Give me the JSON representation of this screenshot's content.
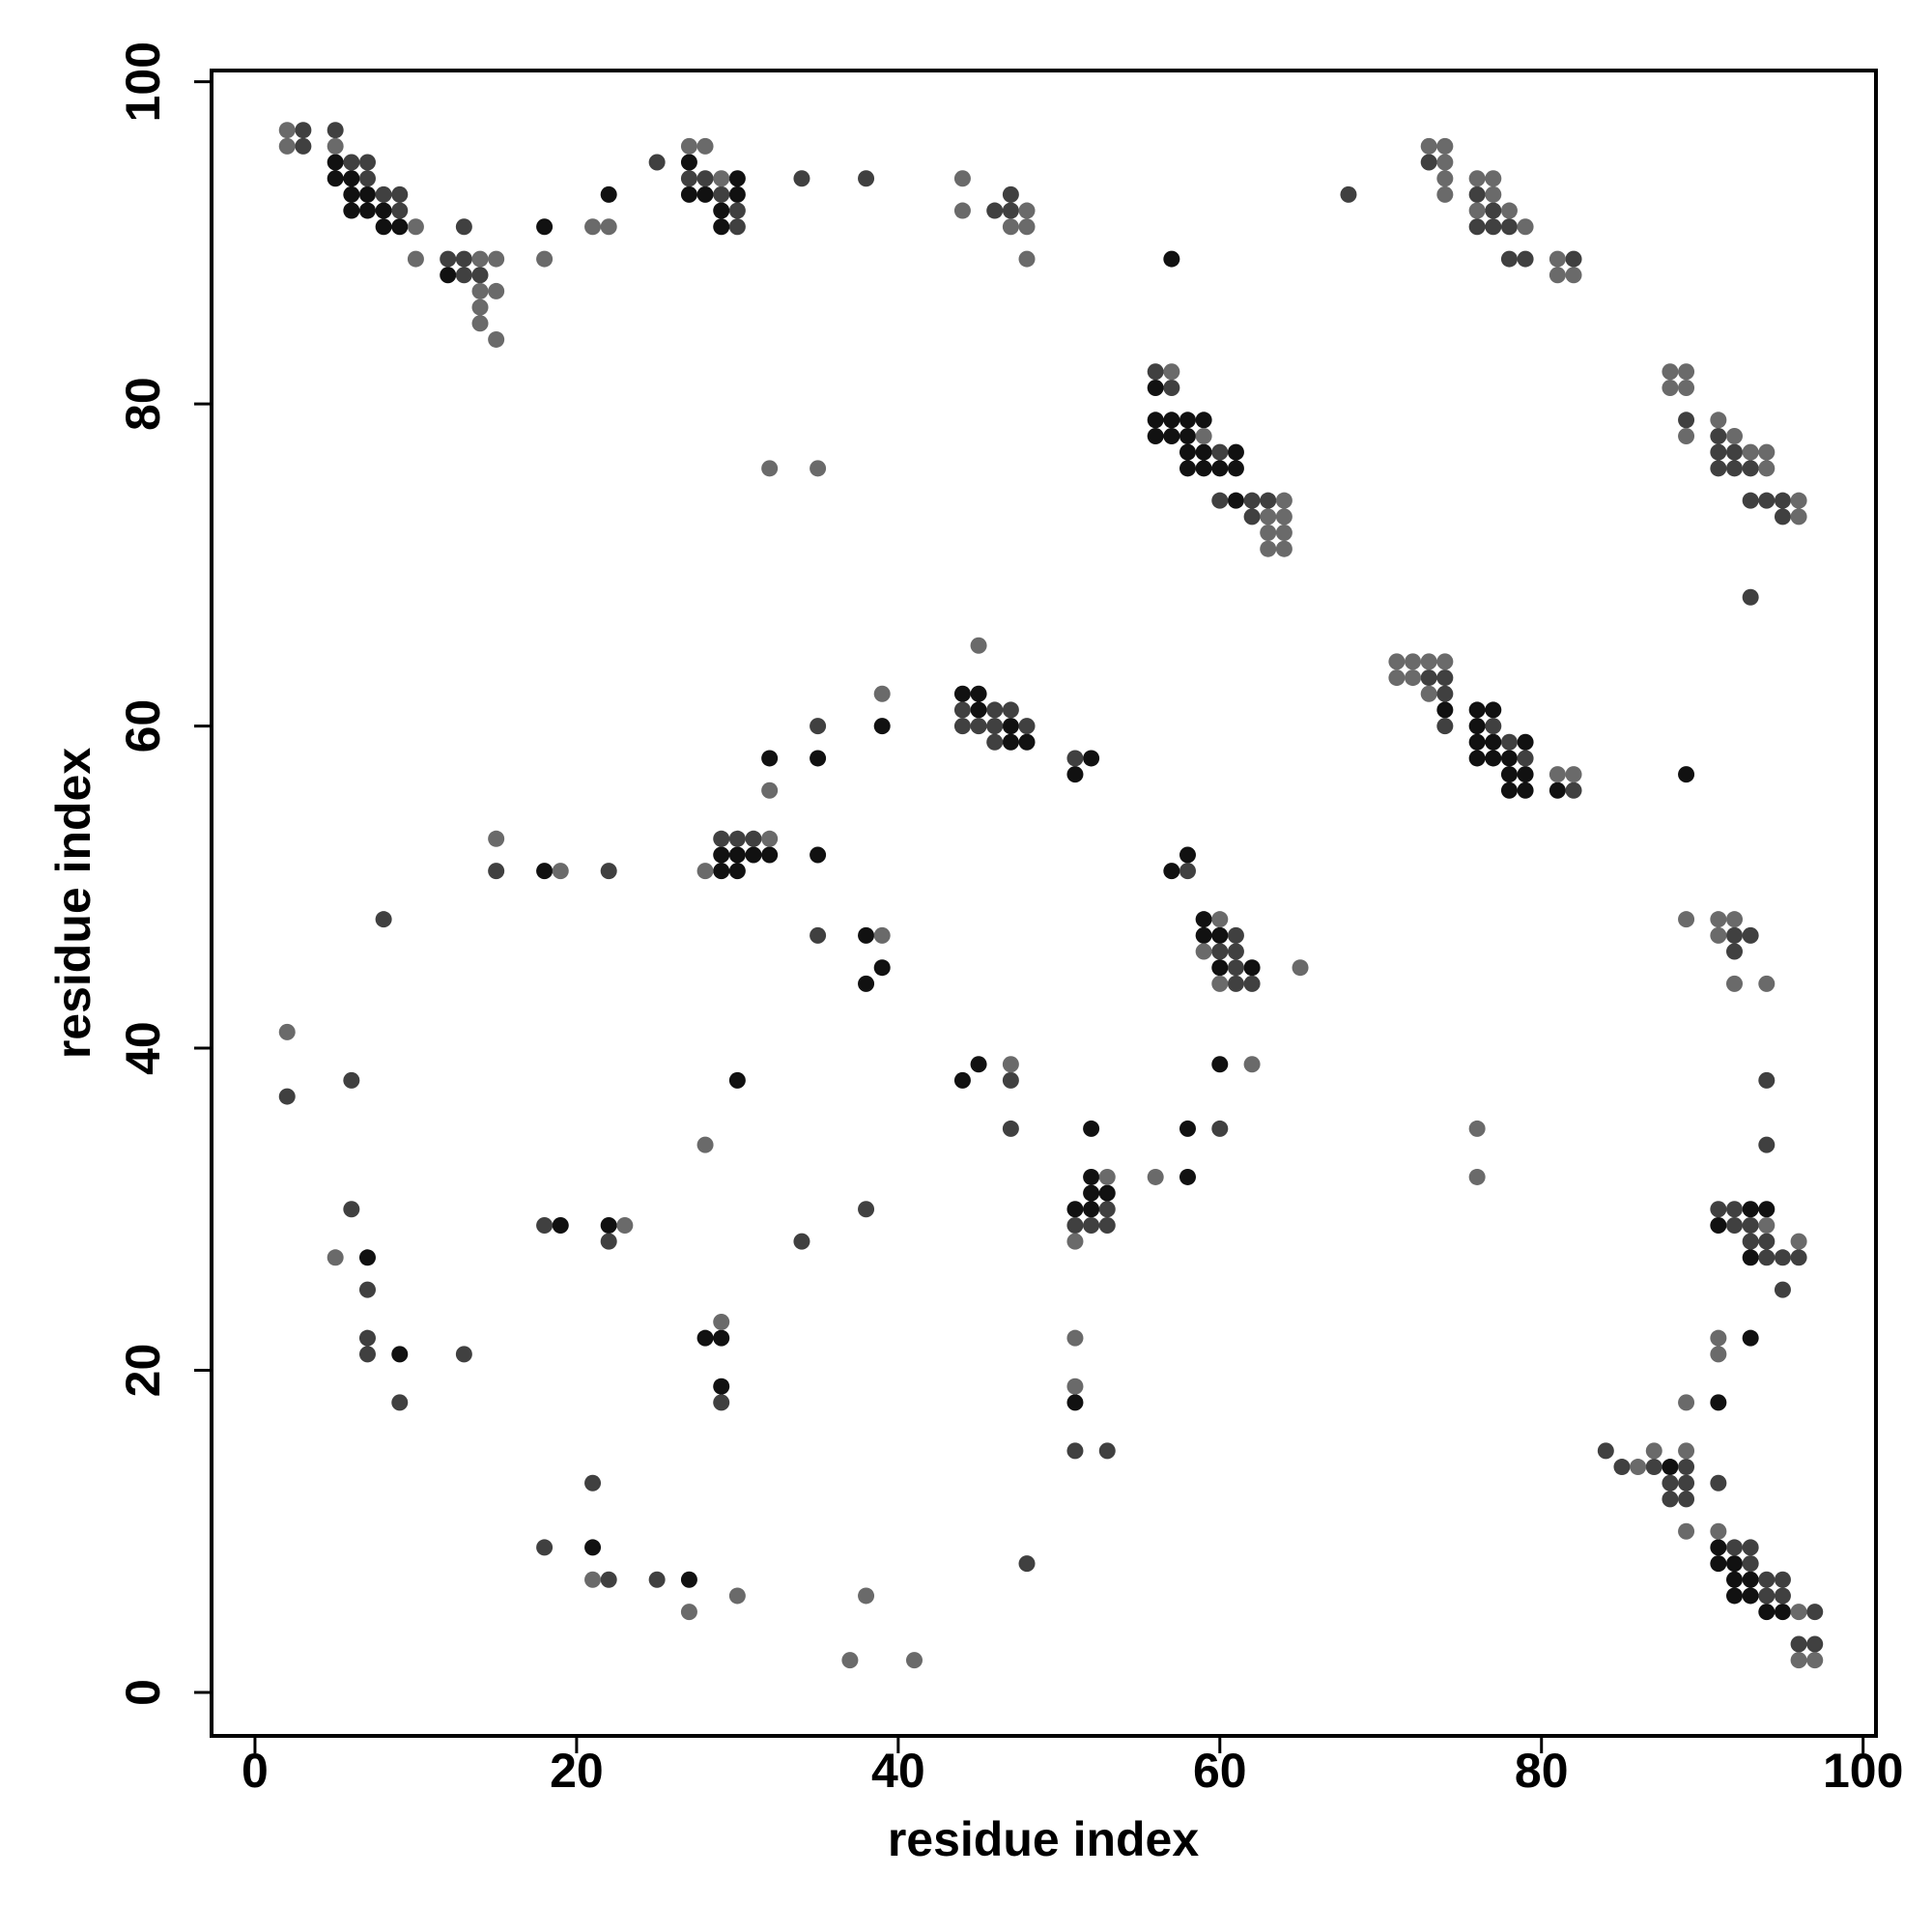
{
  "chart_data": {
    "type": "scatter",
    "xlabel": "residue index",
    "ylabel": "residue index",
    "xlim": [
      -2.7,
      100.8
    ],
    "ylim": [
      -2.7,
      100.7
    ],
    "xticks": [
      0,
      20,
      40,
      60,
      80,
      100
    ],
    "yticks": [
      0,
      20,
      40,
      60,
      80,
      100
    ],
    "series": [
      {
        "color": "#111111",
        "x": [
          5,
          5,
          6,
          6,
          7,
          6,
          7,
          8,
          8,
          9,
          12,
          18,
          22,
          27,
          30,
          27,
          28,
          30,
          29,
          29,
          57,
          56,
          56,
          57,
          58,
          59,
          56,
          57,
          58,
          58,
          59,
          61,
          58,
          59,
          60,
          61,
          61,
          74,
          76,
          77,
          76,
          76,
          77,
          79,
          76,
          77,
          78,
          78,
          79,
          78,
          79,
          81,
          89,
          44,
          45,
          45,
          47,
          47,
          48,
          39,
          32,
          35,
          52,
          51,
          29,
          30,
          31,
          32,
          29,
          30,
          35,
          18,
          57,
          58,
          59,
          59,
          60,
          60,
          62,
          38,
          39,
          38,
          30,
          44,
          45,
          60,
          52,
          58,
          58,
          52,
          52,
          53,
          51,
          52,
          7,
          9,
          19,
          22,
          93,
          94,
          91,
          93,
          93,
          91,
          28,
          29,
          29,
          51,
          88,
          21,
          27,
          91,
          91,
          92,
          92,
          93,
          92,
          93,
          94,
          95
        ],
        "y": [
          95,
          94,
          94,
          93,
          93,
          92,
          92,
          92,
          91,
          91,
          88,
          91,
          93,
          95,
          94,
          93,
          93,
          93,
          92,
          91,
          89,
          81,
          79,
          79,
          79,
          79,
          78,
          78,
          78,
          77,
          77,
          77,
          76,
          76,
          76,
          76,
          74,
          61,
          61,
          61,
          60,
          59,
          59,
          59,
          58,
          58,
          58,
          57,
          57,
          56,
          56,
          56,
          57,
          62,
          62,
          61,
          60,
          59,
          59,
          60,
          58,
          58,
          58,
          57,
          52,
          52,
          52,
          52,
          51,
          51,
          52,
          51,
          51,
          52,
          48,
          47,
          47,
          45,
          45,
          47,
          45,
          44,
          38,
          38,
          39,
          39,
          35,
          35,
          32,
          32,
          31,
          31,
          30,
          30,
          27,
          21,
          29,
          29,
          30,
          30,
          29,
          27,
          22,
          18,
          22,
          22,
          19,
          18,
          14,
          9,
          7,
          9,
          8,
          8,
          7,
          7,
          6,
          6,
          5,
          5
        ]
      },
      {
        "color": "#404040",
        "x": [
          3,
          3,
          5,
          6,
          7,
          7,
          8,
          9,
          9,
          12,
          13,
          13,
          14,
          13,
          25,
          27,
          28,
          29,
          30,
          30,
          34,
          38,
          46,
          47,
          47,
          68,
          73,
          76,
          77,
          76,
          77,
          78,
          78,
          79,
          82,
          56,
          57,
          60,
          60,
          62,
          63,
          62,
          89,
          91,
          91,
          92,
          91,
          92,
          93,
          93,
          94,
          95,
          95,
          93,
          73,
          74,
          74,
          74,
          77,
          78,
          79,
          82,
          44,
          46,
          47,
          44,
          45,
          46,
          48,
          46,
          35,
          51,
          29,
          30,
          31,
          15,
          22,
          8,
          58,
          61,
          60,
          61,
          61,
          61,
          62,
          35,
          92,
          93,
          92,
          2,
          6,
          47,
          47,
          60,
          53,
          51,
          52,
          53,
          94,
          94,
          6,
          7,
          7,
          7,
          13,
          9,
          18,
          22,
          34,
          38,
          91,
          92,
          92,
          93,
          93,
          94,
          94,
          95,
          96,
          95,
          29,
          51,
          53,
          84,
          85,
          87,
          88,
          89,
          88,
          89,
          89,
          91,
          21,
          18,
          48,
          22,
          25,
          92,
          93,
          93,
          94,
          95,
          94,
          95,
          97,
          96,
          97
        ],
        "y": [
          97,
          96,
          97,
          95,
          95,
          94,
          93,
          93,
          92,
          89,
          89,
          88,
          88,
          91,
          95,
          94,
          94,
          93,
          92,
          91,
          94,
          94,
          92,
          93,
          92,
          93,
          95,
          93,
          92,
          91,
          91,
          91,
          89,
          89,
          89,
          82,
          81,
          77,
          74,
          74,
          74,
          73,
          79,
          78,
          77,
          77,
          76,
          76,
          76,
          74,
          74,
          74,
          73,
          68,
          63,
          63,
          62,
          60,
          60,
          59,
          58,
          56,
          61,
          61,
          61,
          60,
          60,
          60,
          60,
          59,
          60,
          58,
          53,
          53,
          53,
          51,
          51,
          48,
          51,
          47,
          46,
          46,
          45,
          44,
          44,
          47,
          47,
          47,
          46,
          37,
          38,
          38,
          35,
          35,
          30,
          29,
          29,
          29,
          38,
          34,
          30,
          25,
          22,
          21,
          21,
          18,
          29,
          28,
          28,
          30,
          30,
          30,
          29,
          29,
          28,
          28,
          27,
          27,
          27,
          25,
          18,
          15,
          15,
          15,
          14,
          14,
          13,
          14,
          12,
          13,
          12,
          13,
          13,
          9,
          8,
          7,
          7,
          9,
          9,
          8,
          7,
          7,
          6,
          6,
          5,
          3,
          3
        ]
      },
      {
        "color": "#6a6a6a",
        "x": [
          2,
          2,
          5,
          10,
          10,
          14,
          15,
          14,
          15,
          14,
          14,
          15,
          18,
          21,
          22,
          27,
          28,
          29,
          44,
          44,
          48,
          47,
          48,
          48,
          73,
          74,
          74,
          74,
          74,
          76,
          77,
          77,
          76,
          78,
          79,
          81,
          81,
          82,
          57,
          59,
          64,
          63,
          64,
          63,
          64,
          63,
          64,
          32,
          35,
          88,
          89,
          88,
          89,
          89,
          91,
          92,
          93,
          94,
          94,
          96,
          96,
          71,
          72,
          73,
          74,
          71,
          72,
          73,
          81,
          82,
          45,
          39,
          32,
          32,
          28,
          15,
          19,
          60,
          59,
          60,
          65,
          39,
          89,
          91,
          92,
          91,
          92,
          94,
          2,
          47,
          62,
          28,
          56,
          53,
          51,
          76,
          76,
          5,
          23,
          94,
          96,
          91,
          91,
          29,
          51,
          51,
          89,
          86,
          87,
          89,
          89,
          21,
          27,
          30,
          38,
          37,
          41,
          91,
          96,
          96,
          97
        ],
        "y": [
          97,
          96,
          96,
          91,
          89,
          89,
          89,
          87,
          87,
          86,
          85,
          84,
          89,
          91,
          91,
          96,
          96,
          94,
          94,
          92,
          92,
          91,
          91,
          89,
          96,
          96,
          95,
          94,
          93,
          94,
          94,
          93,
          92,
          92,
          91,
          89,
          88,
          88,
          82,
          78,
          74,
          73,
          73,
          72,
          72,
          71,
          71,
          76,
          76,
          82,
          82,
          81,
          81,
          78,
          79,
          78,
          77,
          77,
          76,
          74,
          73,
          64,
          64,
          64,
          64,
          63,
          63,
          62,
          57,
          57,
          65,
          62,
          56,
          53,
          51,
          53,
          51,
          48,
          46,
          44,
          45,
          47,
          48,
          48,
          48,
          47,
          44,
          44,
          41,
          39,
          39,
          34,
          32,
          32,
          28,
          35,
          32,
          27,
          29,
          29,
          28,
          22,
          21,
          23,
          22,
          19,
          18,
          14,
          15,
          15,
          10,
          7,
          5,
          6,
          6,
          2,
          2,
          10,
          5,
          2,
          2
        ]
      }
    ]
  }
}
